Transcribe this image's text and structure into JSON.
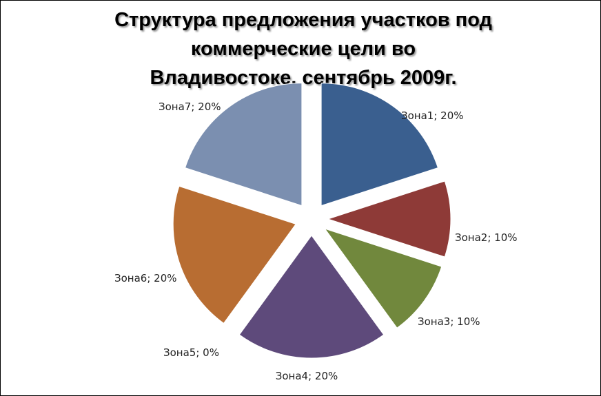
{
  "chart_data": {
    "type": "pie",
    "title": "Структура предложения участков под\nкоммерческие цели во\nВладивостоке, сентябрь 2009г.",
    "categories": [
      "Зона1",
      "Зона2",
      "Зона3",
      "Зона4",
      "Зона5",
      "Зона6",
      "Зона7"
    ],
    "values": [
      20,
      10,
      10,
      20,
      0,
      20,
      20
    ],
    "data_labels": [
      "Зона1; 20%",
      "Зона2; 10%",
      "Зона3; 10%",
      "Зона4; 20%",
      "Зона5; 0%",
      "Зона6; 20%",
      "Зона7; 20%"
    ],
    "colors": [
      "#3a5f8f",
      "#8e3a37",
      "#71883d",
      "#5e4a7b",
      "#3c8ca3",
      "#b86d32",
      "#7b8fb0"
    ],
    "exploded": true,
    "legend": "none"
  }
}
